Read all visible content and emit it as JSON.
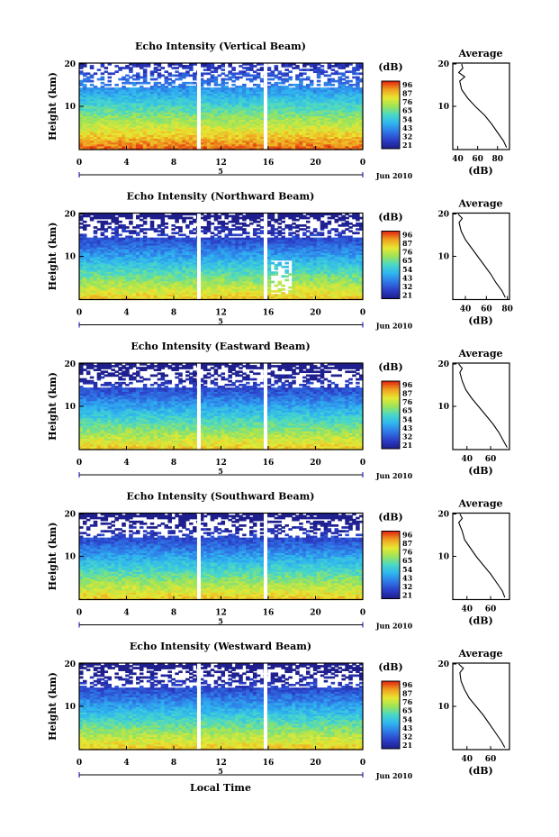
{
  "chart_data": {
    "type": "heatmap",
    "x_tick_labels": [
      "0",
      "4",
      "8",
      "12",
      "16",
      "20",
      "0"
    ],
    "x_marker_label": "5",
    "date_label": "Jun 2010",
    "xlabel": "Local Time",
    "ylabel": "Height (km)",
    "y_tick_labels": [
      "20",
      "10"
    ],
    "colorbar": {
      "title": "(dB)",
      "labels": [
        "96",
        "87",
        "76",
        "65",
        "54",
        "43",
        "32",
        "21"
      ],
      "colors": [
        "#1e1e8c",
        "#2b3fc8",
        "#2f78e6",
        "#2fb4f0",
        "#48d8c8",
        "#9be45a",
        "#e8e832",
        "#f0a020",
        "#e02010"
      ]
    },
    "average_title": "Average",
    "average_xlabel": "(dB)",
    "panels": [
      {
        "title": "Echo Intensity (Vertical Beam)",
        "avg_ticks": [
          "40",
          "60",
          "80"
        ],
        "profile": [
          [
            0.5,
            89
          ],
          [
            2,
            86
          ],
          [
            4,
            80
          ],
          [
            6,
            74
          ],
          [
            8,
            67
          ],
          [
            10,
            58
          ],
          [
            12,
            50
          ],
          [
            14,
            44
          ],
          [
            16,
            42
          ],
          [
            17,
            47
          ],
          [
            18,
            41
          ],
          [
            19,
            45
          ],
          [
            20,
            44
          ]
        ]
      },
      {
        "title": "Echo Intensity (Northward Beam)",
        "avg_ticks": [
          "40",
          "60",
          "80"
        ],
        "profile": [
          [
            0.5,
            78
          ],
          [
            2,
            75
          ],
          [
            4,
            69
          ],
          [
            6,
            64
          ],
          [
            8,
            58
          ],
          [
            10,
            52
          ],
          [
            12,
            46
          ],
          [
            14,
            40
          ],
          [
            16,
            36
          ],
          [
            18,
            34
          ],
          [
            19,
            37
          ],
          [
            20,
            33
          ]
        ]
      },
      {
        "title": "Echo Intensity (Eastward Beam)",
        "avg_ticks": [
          "40",
          "60"
        ],
        "profile": [
          [
            0.5,
            74
          ],
          [
            2,
            71
          ],
          [
            4,
            67
          ],
          [
            6,
            62
          ],
          [
            8,
            56
          ],
          [
            10,
            50
          ],
          [
            12,
            44
          ],
          [
            14,
            39
          ],
          [
            16,
            36
          ],
          [
            18,
            34
          ],
          [
            19,
            36
          ],
          [
            20,
            33
          ]
        ]
      },
      {
        "title": "Echo Intensity (Southward Beam)",
        "avg_ticks": [
          "40",
          "60"
        ],
        "profile": [
          [
            0.5,
            72
          ],
          [
            2,
            70
          ],
          [
            4,
            65
          ],
          [
            6,
            60
          ],
          [
            8,
            54
          ],
          [
            10,
            48
          ],
          [
            12,
            43
          ],
          [
            14,
            38
          ],
          [
            16,
            36
          ],
          [
            18,
            33
          ],
          [
            19,
            36
          ],
          [
            20,
            34
          ]
        ]
      },
      {
        "title": "Echo Intensity (Westward Beam)",
        "avg_ticks": [
          "40",
          "60"
        ],
        "profile": [
          [
            0.5,
            72
          ],
          [
            2,
            69
          ],
          [
            4,
            64
          ],
          [
            6,
            59
          ],
          [
            8,
            54
          ],
          [
            10,
            48
          ],
          [
            12,
            42
          ],
          [
            14,
            38
          ],
          [
            16,
            35
          ],
          [
            18,
            34
          ],
          [
            19,
            37
          ],
          [
            20,
            33
          ]
        ]
      }
    ]
  }
}
